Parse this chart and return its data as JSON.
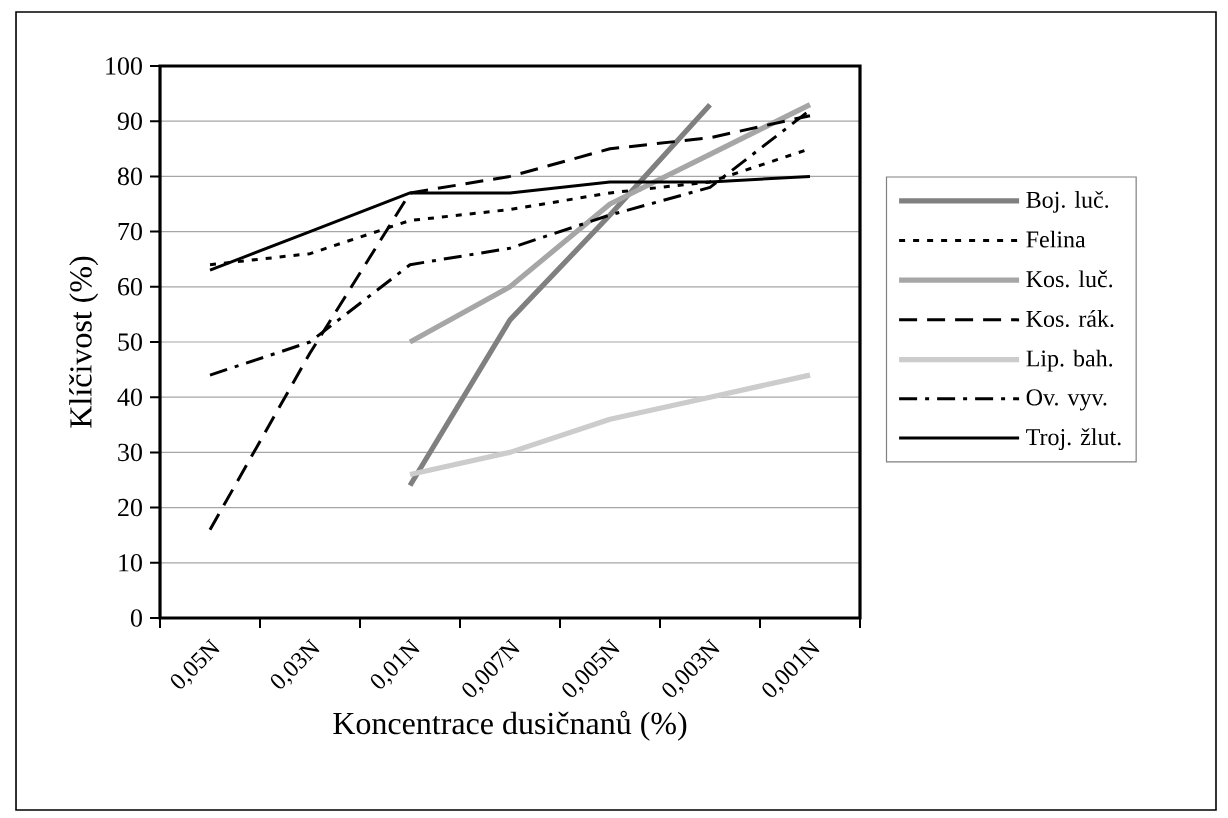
{
  "chart_data": {
    "type": "line",
    "xlabel": "Koncentrace dusičnanů (%)",
    "ylabel": "Klíčivost (%)",
    "categories": [
      "0,05N",
      "0,03N",
      "0,01N",
      "0,007N",
      "0,005N",
      "0,003N",
      "0,001N"
    ],
    "ylim": [
      0,
      100
    ],
    "yticks": [
      0,
      10,
      20,
      30,
      40,
      50,
      60,
      70,
      80,
      90,
      100
    ],
    "grid": "y",
    "legend": "right",
    "marker": "none",
    "series": [
      {
        "name": "Boj. luč.",
        "color": "#808080",
        "line_style": "solid",
        "values": [
          null,
          null,
          24,
          54,
          73,
          93,
          null
        ]
      },
      {
        "name": "Felina",
        "color": "#000000",
        "line_style": "dotted",
        "values": [
          64,
          66,
          72,
          74,
          77,
          79,
          85
        ]
      },
      {
        "name": "Kos. luč.",
        "color": "#a6a6a6",
        "line_style": "solid",
        "values": [
          null,
          null,
          50,
          60,
          75,
          84,
          93
        ]
      },
      {
        "name": "Kos. rák.",
        "color": "#000000",
        "line_style": "dashed",
        "values": [
          16,
          48,
          77,
          80,
          85,
          87,
          91
        ]
      },
      {
        "name": "Lip. bah.",
        "color": "#cccccc",
        "line_style": "solid",
        "values": [
          null,
          null,
          26,
          30,
          36,
          40,
          44
        ]
      },
      {
        "name": "Ov. vyv.",
        "color": "#000000",
        "line_style": "dashdot",
        "values": [
          44,
          50,
          64,
          67,
          73,
          78,
          92
        ]
      },
      {
        "name": "Troj. žlut.",
        "color": "#000000",
        "line_style": "solid",
        "values": [
          63,
          70,
          77,
          77,
          79,
          79,
          80
        ]
      }
    ]
  }
}
